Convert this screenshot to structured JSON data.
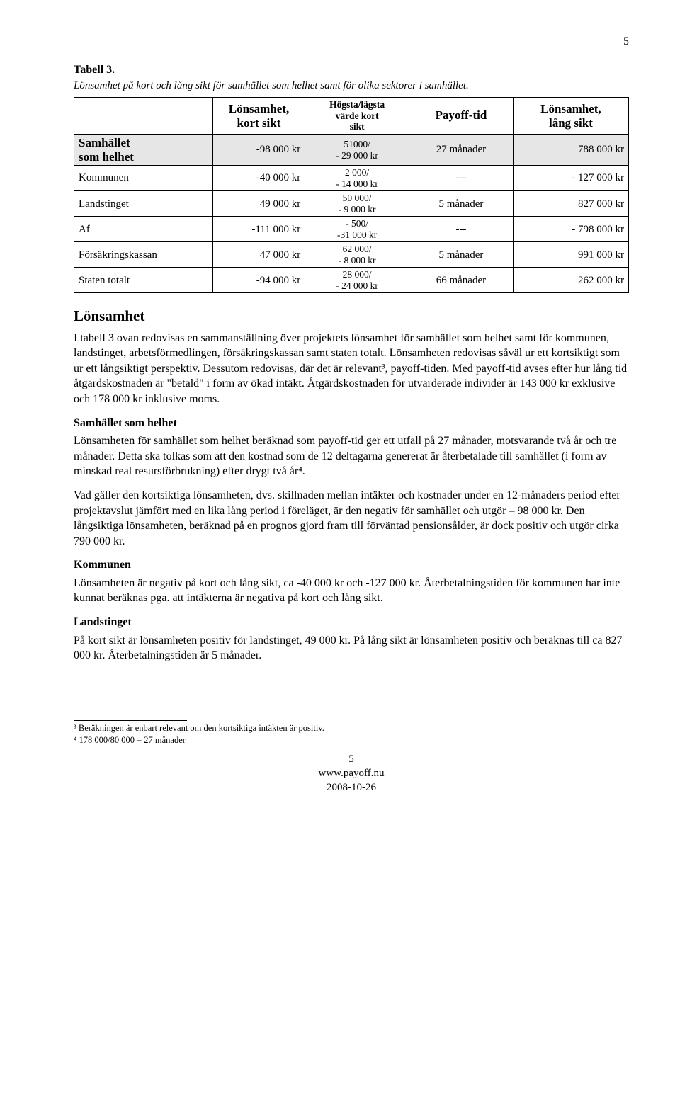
{
  "page_number_top": "5",
  "table": {
    "title": "Tabell 3.",
    "caption": "Lönsamhet på kort och lång sikt för samhället som helhet samt för olika sektorer i samhället.",
    "headers": {
      "col1": "",
      "col2_l1": "Lönsamhet,",
      "col2_l2": "kort sikt",
      "col3_l1": "Högsta/lägsta",
      "col3_l2": "värde kort",
      "col3_l3": "sikt",
      "col4": "Payoff-tid",
      "col5_l1": "Lönsamhet,",
      "col5_l2": "lång sikt"
    },
    "rows": [
      {
        "label_l1": "Samhället",
        "label_l2": "som helhet",
        "label_bold": true,
        "shaded": true,
        "kort": "-98 000 kr",
        "ratio_l1": "51000/",
        "ratio_l2": "- 29 000 kr",
        "payoff": "27 månader",
        "lang": "788 000 kr"
      },
      {
        "label_l1": "Kommunen",
        "label_l2": "",
        "label_bold": false,
        "shaded": false,
        "kort": "-40 000 kr",
        "ratio_l1": "2 000/",
        "ratio_l2": "- 14 000 kr",
        "payoff": "---",
        "lang": "- 127 000 kr"
      },
      {
        "label_l1": "Landstinget",
        "label_l2": "",
        "label_bold": false,
        "shaded": false,
        "kort": "49 000 kr",
        "ratio_l1": "50 000/",
        "ratio_l2": "- 9 000 kr",
        "payoff": "5 månader",
        "lang": "827 000 kr"
      },
      {
        "label_l1": "Af",
        "label_l2": "",
        "label_bold": false,
        "shaded": false,
        "kort": "-111 000 kr",
        "ratio_l1": "- 500/",
        "ratio_l2": "-31 000 kr",
        "payoff": "---",
        "lang": "- 798 000 kr"
      },
      {
        "label_l1": "Försäkringskassan",
        "label_l2": "",
        "label_bold": false,
        "shaded": false,
        "kort": "47 000 kr",
        "ratio_l1": "62 000/",
        "ratio_l2": "- 8 000 kr",
        "payoff": "5 månader",
        "lang": "991 000 kr"
      },
      {
        "label_l1": "Staten totalt",
        "label_l2": "",
        "label_bold": false,
        "shaded": false,
        "kort": "-94 000 kr",
        "ratio_l1": "28 000/",
        "ratio_l2": "- 24 000 kr",
        "payoff": "66 månader",
        "lang": "262 000 kr"
      }
    ]
  },
  "headings": {
    "lonsamhet": "Lönsamhet",
    "samhallet": "Samhället som helhet",
    "kommunen": "Kommunen",
    "landstinget": "Landstinget"
  },
  "paragraphs": {
    "intro": "I tabell 3 ovan redovisas en sammanställning över projektets lönsamhet för samhället som helhet samt för kommunen, landstinget, arbetsförmedlingen, försäkringskassan samt staten totalt. Lönsamheten redovisas såväl ur ett kortsiktigt som ur ett långsiktigt perspektiv. Dessutom redovisas, där det är relevant³, payoff-tiden. Med payoff-tid avses efter hur lång tid åtgärdskostnaden är \"betald\" i form av ökad intäkt. Åtgärdskostnaden för utvärderade individer är 143 000 kr exklusive och 178 000 kr inklusive moms.",
    "samh_p1": "Lönsamheten för samhället som helhet beräknad som payoff-tid ger ett utfall på 27 månader, motsvarande två år och tre månader. Detta ska tolkas som att den kostnad som de 12 deltagarna genererat är återbetalade till samhället (i form av minskad real resursförbrukning) efter drygt två år⁴.",
    "samh_p2": "Vad gäller den kortsiktiga lönsamheten, dvs. skillnaden mellan intäkter och kostnader under en 12-månaders period efter projektavslut jämfört med en lika lång period i föreläget, är den negativ för samhället och utgör – 98 000 kr. Den långsiktiga lönsamheten, beräknad på en prognos gjord fram till förväntad pensionsålder, är dock positiv och utgör cirka 790 000 kr.",
    "komm_p": "Lönsamheten är negativ på kort och lång sikt, ca -40 000 kr och -127 000 kr. Återbetalningstiden för kommunen har inte kunnat beräknas pga. att intäkterna är negativa på kort och lång sikt.",
    "land_p": "På kort sikt är lönsamheten positiv för landstinget, 49 000 kr. På lång sikt är lönsamheten positiv och beräknas till ca 827 000 kr. Återbetalningstiden är 5 månader."
  },
  "footnotes": {
    "f3": "³ Beräkningen är enbart relevant om den kortsiktiga intäkten är positiv.",
    "f4": "⁴ 178 000/80 000 = 27 månader"
  },
  "footer": {
    "page": "5",
    "url": "www.payoff.nu",
    "date": "2008-10-26"
  }
}
